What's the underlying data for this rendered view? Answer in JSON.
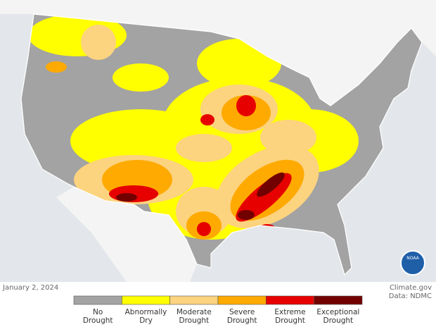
{
  "footer": {
    "date": "January 2, 2024",
    "source": "Climate.gov",
    "data_credit": "Data: NDMC"
  },
  "logo": "NOAA",
  "legend": {
    "categories": [
      {
        "label": [
          "No",
          "Drought"
        ],
        "color": "#a3a3a3"
      },
      {
        "label": [
          "Abnormally",
          "Dry"
        ],
        "color": "#ffff00"
      },
      {
        "label": [
          "Moderate",
          "Drought"
        ],
        "color": "#fcd37f"
      },
      {
        "label": [
          "Severe",
          "Drought"
        ],
        "color": "#ffaa00"
      },
      {
        "label": [
          "Extreme",
          "Drought"
        ],
        "color": "#e60000"
      },
      {
        "label": [
          "Exceptional",
          "Drought"
        ],
        "color": "#730000"
      }
    ]
  }
}
